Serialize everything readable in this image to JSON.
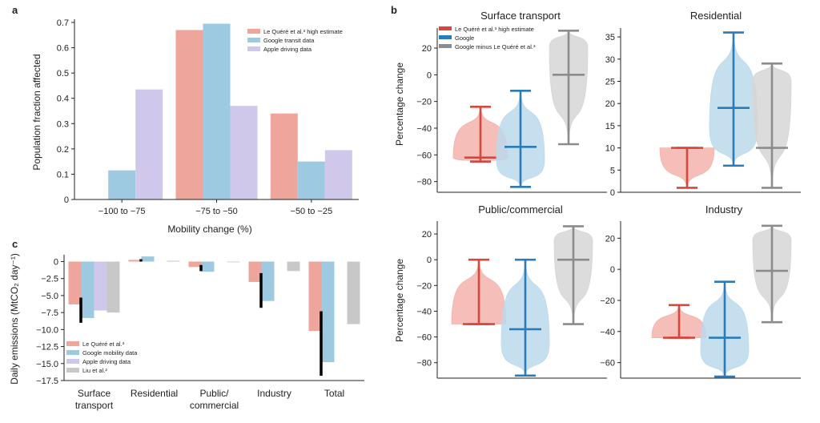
{
  "chart_data": [
    {
      "id": "a",
      "panel_label": "a",
      "type": "bar",
      "xlabel": "Mobility change (%)",
      "ylabel": "Population fraction affected",
      "ylim": [
        0,
        0.7
      ],
      "yticks": [
        "0",
        "0.1",
        "0.2",
        "0.3",
        "0.4",
        "0.5",
        "0.6",
        "0.7"
      ],
      "categories": [
        "−100 to −75",
        "−75 to −50",
        "−50 to −25"
      ],
      "legend_position": "top-right",
      "series": [
        {
          "name": "Le Quéré et al.³ high estimate",
          "color": "#eda59c",
          "values": [
            0,
            0.67,
            0.34
          ]
        },
        {
          "name": "Google transit data",
          "color": "#9ecae1",
          "values": [
            0.115,
            0.695,
            0.15
          ]
        },
        {
          "name": "Apple driving data",
          "color": "#cfc8ea",
          "values": [
            0.435,
            0.37,
            0.195
          ]
        }
      ]
    },
    {
      "id": "b",
      "panel_label": "b",
      "type": "violin",
      "ylabel": "Percentage change",
      "legend": [
        {
          "name": "Le Quéré et al.³ high estimate",
          "color": "#d9473c"
        },
        {
          "name": "Google",
          "color": "#2b7bb9"
        },
        {
          "name": "Google minus Le Quéré et al.³",
          "color": "#8c8c8c"
        }
      ],
      "subplots": [
        {
          "title": "Surface transport",
          "ylim": [
            -88,
            35
          ],
          "yticks": [
            "−80",
            "−60",
            "−40",
            "−20",
            "0",
            "20"
          ],
          "violins": [
            {
              "series": "Le Quéré et al.³ high estimate",
              "min": -65,
              "median": -62,
              "max": -24
            },
            {
              "series": "Google",
              "min": -84,
              "median": -54,
              "max": -12
            },
            {
              "series": "Google minus Le Quéré et al.³",
              "min": -52,
              "median": 0,
              "max": 33
            }
          ]
        },
        {
          "title": "Residential",
          "ylim": [
            0,
            37
          ],
          "yticks": [
            "0",
            "5",
            "10",
            "15",
            "20",
            "25",
            "30",
            "35"
          ],
          "violins": [
            {
              "series": "Le Quéré et al.³ high estimate",
              "min": 1,
              "median": 10,
              "max": 10
            },
            {
              "series": "Google",
              "min": 6,
              "median": 19,
              "max": 36
            },
            {
              "series": "Google minus Le Quéré et al.³",
              "min": 1,
              "median": 10,
              "max": 29
            }
          ]
        },
        {
          "title": "Public/commercial",
          "ylim": [
            -92,
            30
          ],
          "yticks": [
            "−80",
            "−60",
            "−40",
            "−20",
            "0",
            "20"
          ],
          "violins": [
            {
              "series": "Le Quéré et al.³ high estimate",
              "min": -50,
              "median": -50,
              "max": 0
            },
            {
              "series": "Google",
              "min": -90,
              "median": -54,
              "max": 0
            },
            {
              "series": "Google minus Le Quéré et al.³",
              "min": -50,
              "median": 0,
              "max": 26
            }
          ]
        },
        {
          "title": "Industry",
          "ylim": [
            -70,
            31
          ],
          "yticks": [
            "−60",
            "−40",
            "−20",
            "0",
            "20"
          ],
          "violins": [
            {
              "series": "Le Quéré et al.³ high estimate",
              "min": -44,
              "median": -44,
              "max": -23
            },
            {
              "series": "Google",
              "min": -69,
              "median": -44,
              "max": -8
            },
            {
              "series": "Google minus Le Quéré et al.³",
              "min": -34,
              "median": -1,
              "max": 28
            }
          ]
        }
      ]
    },
    {
      "id": "c",
      "panel_label": "c",
      "type": "bar",
      "ylabel": "Daily emissions (MtCO₂ day⁻¹)",
      "ylim": [
        -17.5,
        1
      ],
      "yticks": [
        "0",
        "−2.5",
        "−5.0",
        "−7.5",
        "−10.0",
        "−12.5",
        "−15.0",
        "−17.5"
      ],
      "categories": [
        "Surface transport",
        "Residential",
        "Public/ commercial",
        "Industry",
        "Total"
      ],
      "category_labels": [
        [
          "Surface",
          "transport"
        ],
        [
          "Residential"
        ],
        [
          "Public/",
          "commercial"
        ],
        [
          "Industry"
        ],
        [
          "Total"
        ]
      ],
      "legend_position": "bottom-left",
      "series": [
        {
          "name": "Le Quéré et al.³",
          "color": "#eda59c",
          "values": [
            -6.3,
            0.25,
            -0.8,
            -3.0,
            -10.2
          ]
        },
        {
          "name": "Google mobility data",
          "color": "#9ecae1",
          "values": [
            -8.3,
            0.75,
            -1.5,
            -5.8,
            -14.8
          ]
        },
        {
          "name": "Apple driving data",
          "color": "#cfc8ea",
          "values": [
            -7.2,
            null,
            null,
            null,
            null
          ]
        },
        {
          "name": "Liu et al.²",
          "color": "#c8c8c8",
          "values": [
            -7.5,
            0.12,
            -0.1,
            -1.4,
            -9.2
          ]
        }
      ],
      "uncertainty_ranges": [
        [
          -5.3,
          -9.0
        ],
        [
          0.35,
          0.0
        ],
        [
          -0.5,
          -1.4
        ],
        [
          -1.7,
          -6.8
        ],
        [
          -7.3,
          -16.8
        ]
      ]
    }
  ]
}
